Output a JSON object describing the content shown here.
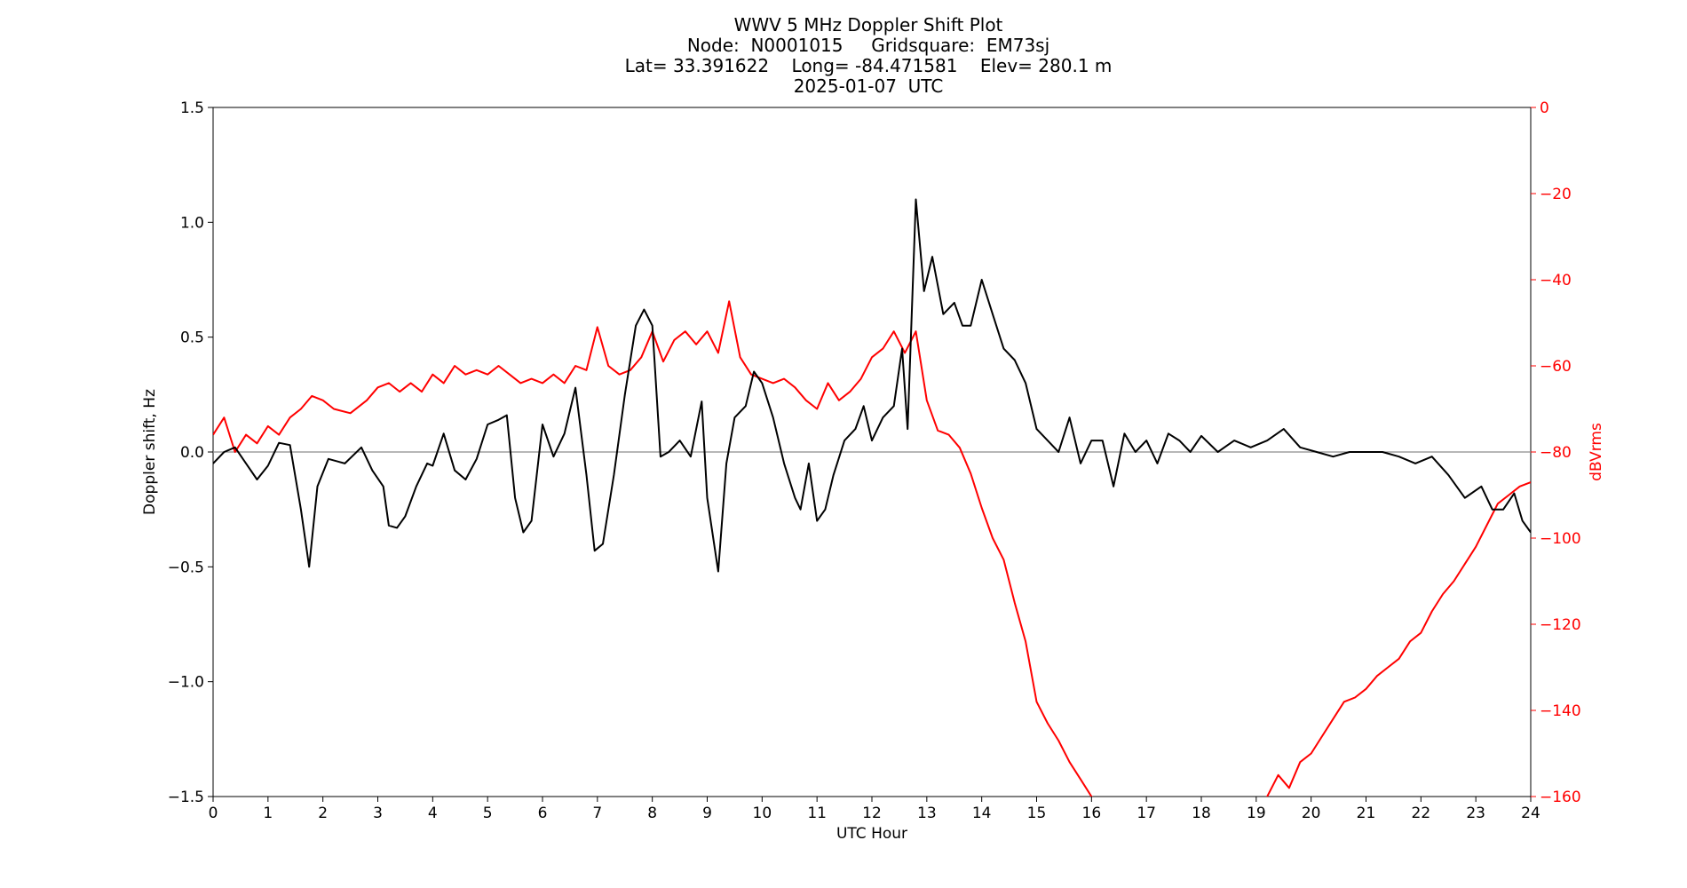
{
  "chart_data": {
    "type": "line",
    "title": "WWV 5 MHz Doppler Shift Plot",
    "subtitle_lines": [
      "Node:  N0001015     Gridsquare:  EM73sj",
      "Lat= 33.391622    Long= -84.471581    Elev= 280.1 m",
      "2025-01-07  UTC"
    ],
    "xlabel": "UTC Hour",
    "ylabel": "Doppler shift, Hz",
    "ylabel_right": "dBVrms",
    "xlim": [
      0,
      24
    ],
    "ylim": [
      -1.5,
      1.5
    ],
    "ylim_right": [
      -160,
      0
    ],
    "x_ticks": [
      "0",
      "1",
      "2",
      "3",
      "4",
      "5",
      "6",
      "7",
      "8",
      "9",
      "10",
      "11",
      "12",
      "13",
      "14",
      "15",
      "16",
      "17",
      "18",
      "19",
      "20",
      "21",
      "22",
      "23",
      "24"
    ],
    "y_ticks": [
      "1.5",
      "1.0",
      "0.5",
      "0.0",
      "−0.5",
      "−1.0",
      "−1.5"
    ],
    "y_ticks_right": [
      "0",
      "−20",
      "−40",
      "−60",
      "−80",
      "−100",
      "−120",
      "−140",
      "−160"
    ],
    "grid": false,
    "zero_line": 0.0,
    "series": [
      {
        "axis": "left",
        "color": "#000000",
        "x": [
          0,
          0.2,
          0.4,
          0.6,
          0.8,
          1.0,
          1.2,
          1.4,
          1.6,
          1.75,
          1.9,
          2.1,
          2.4,
          2.7,
          2.9,
          3.1,
          3.2,
          3.35,
          3.5,
          3.7,
          3.9,
          4.0,
          4.2,
          4.4,
          4.6,
          4.8,
          5.0,
          5.2,
          5.35,
          5.5,
          5.65,
          5.8,
          6.0,
          6.2,
          6.4,
          6.6,
          6.8,
          6.95,
          7.1,
          7.3,
          7.5,
          7.7,
          7.85,
          8.0,
          8.15,
          8.3,
          8.5,
          8.7,
          8.9,
          9.0,
          9.2,
          9.35,
          9.5,
          9.7,
          9.85,
          10.0,
          10.2,
          10.4,
          10.6,
          10.7,
          10.85,
          11.0,
          11.15,
          11.3,
          11.5,
          11.7,
          11.85,
          12.0,
          12.2,
          12.4,
          12.55,
          12.65,
          12.8,
          12.95,
          13.1,
          13.3,
          13.5,
          13.65,
          13.8,
          14.0,
          14.2,
          14.4,
          14.6,
          14.8,
          15.0,
          15.2,
          15.4,
          15.6,
          15.8,
          16.0,
          16.2,
          16.4,
          16.6,
          16.8,
          17.0,
          17.2,
          17.4,
          17.6,
          17.8,
          18.0,
          18.3,
          18.6,
          18.9,
          19.2,
          19.5,
          19.8,
          20.1,
          20.4,
          20.7,
          21.0,
          21.3,
          21.6,
          21.9,
          22.2,
          22.5,
          22.8,
          23.1,
          23.3,
          23.5,
          23.7,
          23.85,
          24.0
        ],
        "y": [
          -0.05,
          0.0,
          0.02,
          -0.05,
          -0.12,
          -0.06,
          0.04,
          0.03,
          -0.25,
          -0.5,
          -0.15,
          -0.03,
          -0.05,
          0.02,
          -0.08,
          -0.15,
          -0.32,
          -0.33,
          -0.28,
          -0.15,
          -0.05,
          -0.06,
          0.08,
          -0.08,
          -0.12,
          -0.03,
          0.12,
          0.14,
          0.16,
          -0.2,
          -0.35,
          -0.3,
          0.12,
          -0.02,
          0.08,
          0.28,
          -0.1,
          -0.43,
          -0.4,
          -0.1,
          0.25,
          0.55,
          0.62,
          0.55,
          -0.02,
          0.0,
          0.05,
          -0.02,
          0.22,
          -0.2,
          -0.52,
          -0.05,
          0.15,
          0.2,
          0.35,
          0.3,
          0.15,
          -0.05,
          -0.2,
          -0.25,
          -0.05,
          -0.3,
          -0.25,
          -0.1,
          0.05,
          0.1,
          0.2,
          0.05,
          0.15,
          0.2,
          0.45,
          0.1,
          1.1,
          0.7,
          0.85,
          0.6,
          0.65,
          0.55,
          0.55,
          0.75,
          0.6,
          0.45,
          0.4,
          0.3,
          0.1,
          0.05,
          0.0,
          0.15,
          -0.05,
          0.05,
          0.05,
          -0.15,
          0.08,
          0.0,
          0.05,
          -0.05,
          0.08,
          0.05,
          0.0,
          0.07,
          0.0,
          0.05,
          0.02,
          0.05,
          0.1,
          0.02,
          0.0,
          -0.02,
          0.0,
          0.0,
          0.0,
          -0.02,
          -0.05,
          -0.02,
          -0.1,
          -0.2,
          -0.15,
          -0.25,
          -0.25,
          -0.18,
          -0.3,
          -0.35
        ]
      },
      {
        "axis": "right",
        "color": "#ff0000",
        "x": [
          0,
          0.2,
          0.4,
          0.6,
          0.8,
          1.0,
          1.2,
          1.4,
          1.6,
          1.8,
          2.0,
          2.2,
          2.5,
          2.8,
          3.0,
          3.2,
          3.4,
          3.6,
          3.8,
          4.0,
          4.2,
          4.4,
          4.6,
          4.8,
          5.0,
          5.2,
          5.4,
          5.6,
          5.8,
          6.0,
          6.2,
          6.4,
          6.6,
          6.8,
          7.0,
          7.2,
          7.4,
          7.6,
          7.8,
          8.0,
          8.2,
          8.4,
          8.6,
          8.8,
          9.0,
          9.2,
          9.4,
          9.6,
          9.8,
          10.0,
          10.2,
          10.4,
          10.6,
          10.8,
          11.0,
          11.2,
          11.4,
          11.6,
          11.8,
          12.0,
          12.2,
          12.4,
          12.6,
          12.8,
          13.0,
          13.2,
          13.4,
          13.6,
          13.8,
          14.0,
          14.2,
          14.4,
          14.6,
          14.8,
          15.0,
          15.2,
          15.4,
          15.6,
          15.8,
          16.0,
          16.2,
          16.4,
          16.6,
          16.8,
          17.0,
          17.2,
          17.4,
          17.6,
          17.8,
          18.0,
          18.2,
          18.4,
          18.6,
          18.8,
          19.0,
          19.2,
          19.4,
          19.6,
          19.8,
          20.0,
          20.2,
          20.4,
          20.6,
          20.8,
          21.0,
          21.2,
          21.4,
          21.6,
          21.8,
          22.0,
          22.2,
          22.4,
          22.6,
          22.8,
          23.0,
          23.2,
          23.4,
          23.6,
          23.8,
          24.0
        ],
        "y": [
          -76,
          -72,
          -80,
          -76,
          -78,
          -74,
          -76,
          -72,
          -70,
          -67,
          -68,
          -70,
          -71,
          -68,
          -65,
          -64,
          -66,
          -64,
          -66,
          -62,
          -64,
          -60,
          -62,
          -61,
          -62,
          -60,
          -62,
          -64,
          -63,
          -64,
          -62,
          -64,
          -60,
          -61,
          -51,
          -60,
          -62,
          -61,
          -58,
          -52,
          -59,
          -54,
          -52,
          -55,
          -52,
          -57,
          -45,
          -58,
          -62,
          -63,
          -64,
          -63,
          -65,
          -68,
          -70,
          -64,
          -68,
          -66,
          -63,
          -58,
          -56,
          -52,
          -57,
          -52,
          -68,
          -75,
          -76,
          -79,
          -85,
          -93,
          -100,
          -105,
          -115,
          -124,
          -138,
          -143,
          -147,
          -152,
          -156,
          -160,
          -162,
          -165,
          -165,
          -162,
          -166,
          -165,
          -165,
          -166,
          -166,
          -165,
          -165,
          -166,
          -166,
          -163,
          -162,
          -160,
          -155,
          -158,
          -152,
          -150,
          -146,
          -142,
          -138,
          -137,
          -135,
          -132,
          -130,
          -128,
          -124,
          -122,
          -117,
          -113,
          -110,
          -106,
          -102,
          -97,
          -92,
          -90,
          -88,
          -87
        ]
      }
    ]
  }
}
